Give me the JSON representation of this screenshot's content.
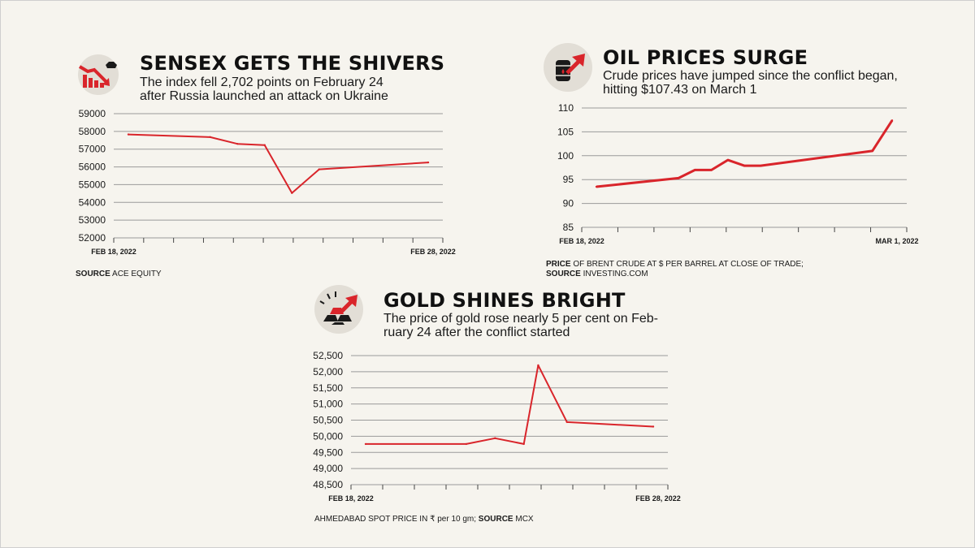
{
  "colors": {
    "line": "#d9252b",
    "grid": "#9a9a9a",
    "axis": "#444444",
    "icon_bg": "#e2ded6",
    "icon_dark": "#1a1a1a"
  },
  "sensex": {
    "title": "SENSEX GETS THE SHIVERS",
    "subtitle_lines": [
      "The index fell 2,702 points on February 24",
      "after Russia launched an attack on Ukraine"
    ],
    "source_label": "SOURCE",
    "source_text": "ACE EQUITY",
    "icon": "stock-decline-bull-icon"
  },
  "oil": {
    "title": "OIL PRICES SURGE",
    "subtitle_lines": [
      "Crude prices have jumped since the conflict began,",
      "hitting $107.43 on March 1"
    ],
    "note_label_1": "PRICE",
    "note_text_1": "OF BRENT CRUDE AT $ PER BARREL AT CLOSE OF TRADE;",
    "note_label_2": "SOURCE",
    "note_text_2": "INVESTING.COM",
    "icon": "oil-barrel-rising-icon"
  },
  "gold": {
    "title": "GOLD SHINES BRIGHT",
    "subtitle_lines": [
      "The price of gold rose nearly 5 per cent on Feb-",
      "ruary 24 after the conflict started"
    ],
    "note_text": "AHMEDABAD SPOT PRICE IN ₹ per 10 gm;",
    "source_label": "SOURCE",
    "source_text": "MCX",
    "icon": "gold-bars-rising-icon"
  },
  "chart_data": [
    {
      "type": "line",
      "title": "SENSEX GETS THE SHIVERS",
      "x_labels": [
        "FEB 18, 2022",
        "FEB 28, 2022"
      ],
      "ylim": [
        52000,
        59000
      ],
      "y_ticks": [
        59000,
        58000,
        57000,
        56000,
        55000,
        54000,
        53000,
        52000
      ],
      "y_tick_labels": [
        "59000",
        "58000",
        "57000",
        "56000",
        "55000",
        "54000",
        "53000",
        "52000"
      ],
      "x_index_max": 11,
      "x": [
        0,
        3,
        4,
        5,
        6,
        7,
        11
      ],
      "values": [
        57830,
        57680,
        57300,
        57230,
        54530,
        55860,
        56250
      ],
      "grid": true
    },
    {
      "type": "line",
      "title": "OIL PRICES SURGE",
      "x_labels": [
        "FEB 18, 2022",
        "MAR 1, 2022"
      ],
      "ylim": [
        85,
        110
      ],
      "y_ticks": [
        110,
        105,
        100,
        95,
        90,
        85
      ],
      "y_tick_labels": [
        "110",
        "105",
        "100",
        "95",
        "90",
        "85"
      ],
      "x_index_max": 9,
      "x": [
        0,
        2.5,
        3,
        3.5,
        4,
        4.5,
        5,
        8.4,
        9
      ],
      "values": [
        93.5,
        95.3,
        97.0,
        97.0,
        99.1,
        97.9,
        97.9,
        101.0,
        107.4
      ],
      "grid": true
    },
    {
      "type": "line",
      "title": "GOLD SHINES BRIGHT",
      "x_labels": [
        "FEB 18, 2022",
        "FEB 28, 2022"
      ],
      "ylim": [
        48500,
        52500
      ],
      "y_ticks": [
        52500,
        52000,
        51500,
        51000,
        50500,
        50000,
        49500,
        49000,
        48500
      ],
      "y_tick_labels": [
        "52,500",
        "52,000",
        "51,500",
        "51,000",
        "50,500",
        "50,000",
        "49,500",
        "49,000",
        "48,500"
      ],
      "x_index_max": 10,
      "x": [
        0,
        3.5,
        4.5,
        5.5,
        6,
        7,
        10
      ],
      "values": [
        49760,
        49760,
        49940,
        49760,
        52200,
        50440,
        50300
      ],
      "grid": true
    }
  ]
}
